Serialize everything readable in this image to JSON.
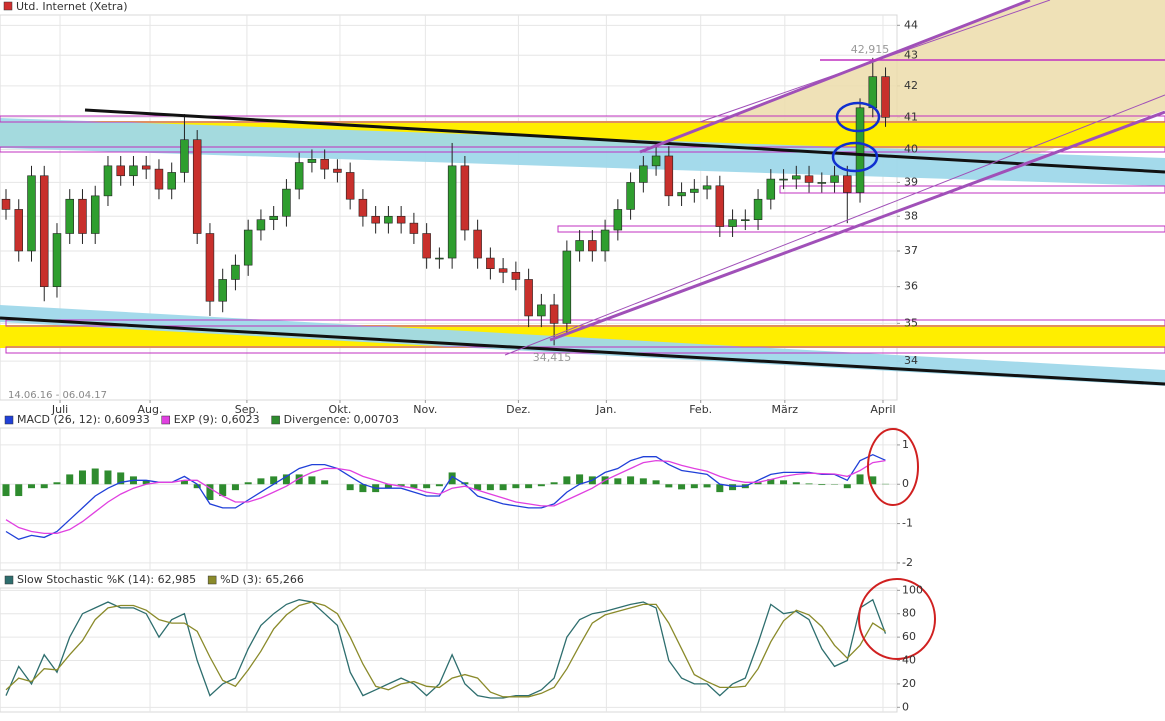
{
  "chart_data": [
    {
      "type": "candlestick",
      "title": "Utd. Internet (Xetra)",
      "title_color": "#d03030",
      "date_range": "14.06.16 - 06.04.17",
      "high_label": "42,915",
      "low_label": "34,415",
      "open": [
        38.5,
        38.2,
        37,
        39.2,
        36,
        37.5,
        38.5,
        37.5,
        38.6,
        39.5,
        39.2,
        39.5,
        39.4,
        38.8,
        39.3,
        40.3,
        37.5,
        35.6,
        36.2,
        36.6,
        37.6,
        37.9,
        38,
        38.8,
        39.6,
        39.7,
        39.4,
        39.3,
        38.5,
        38,
        37.8,
        38,
        37.8,
        37.5,
        36.8,
        36.8,
        39.5,
        37.6,
        36.8,
        36.5,
        36.4,
        36.2,
        35.2,
        35.5,
        35,
        37,
        37.3,
        37,
        37.6,
        38.2,
        39,
        39.5,
        39.8,
        38.6,
        38.7,
        38.8,
        38.9,
        37.7,
        37.9,
        37.9,
        38.5,
        39.1,
        39.1,
        39.2,
        39,
        39,
        39.2,
        38.7,
        41.3,
        42.3
      ],
      "high": [
        38.8,
        38.5,
        39.5,
        39.5,
        37.8,
        38.8,
        38.8,
        38.9,
        39.8,
        39.8,
        39.8,
        39.8,
        39.7,
        39.6,
        41.1,
        40.6,
        37.8,
        36.5,
        36.9,
        37.9,
        38.2,
        38.3,
        39.1,
        39.9,
        40,
        40,
        39.7,
        39.6,
        38.8,
        38.3,
        38.3,
        38.3,
        38.1,
        37.8,
        37.1,
        40.2,
        39.8,
        37.9,
        37.1,
        36.8,
        36.7,
        36.5,
        35.8,
        35.8,
        37.3,
        37.6,
        37.6,
        37.9,
        38.5,
        39.3,
        39.8,
        40.2,
        40.1,
        39,
        39.1,
        39.2,
        39.2,
        38.2,
        38.2,
        38.8,
        39.4,
        39.4,
        39.5,
        39.5,
        39.3,
        39.5,
        39.5,
        41.6,
        42.915,
        42.6
      ],
      "low": [
        37.9,
        36.7,
        36.7,
        35.6,
        35.7,
        37.2,
        37.2,
        37.2,
        38.3,
        38.9,
        38.9,
        39.1,
        38.5,
        38.5,
        39,
        37.2,
        35.2,
        35.3,
        35.9,
        36.3,
        37.3,
        37.6,
        37.7,
        38.5,
        39.3,
        39.1,
        39,
        38.2,
        37.7,
        37.5,
        37.5,
        37.5,
        37.2,
        36.5,
        36.5,
        36.5,
        37.3,
        36.5,
        36.2,
        36.1,
        35.9,
        34.9,
        34.9,
        34.415,
        34.7,
        36.7,
        36.7,
        36.7,
        37.3,
        37.9,
        38.7,
        39.2,
        38.3,
        38.3,
        38.4,
        38.5,
        37.4,
        37.4,
        37.6,
        37.6,
        38.2,
        38.8,
        38.8,
        38.7,
        38.7,
        38.7,
        37.8,
        38.4,
        41,
        40.7
      ],
      "close": [
        38.2,
        37,
        39.2,
        36,
        37.5,
        38.5,
        37.5,
        38.6,
        39.5,
        39.2,
        39.5,
        39.4,
        38.8,
        39.3,
        40.3,
        37.5,
        35.6,
        36.2,
        36.6,
        37.6,
        37.9,
        38,
        38.8,
        39.6,
        39.7,
        39.4,
        39.3,
        38.5,
        38,
        37.8,
        38,
        37.8,
        37.5,
        36.8,
        36.8,
        39.5,
        37.6,
        36.8,
        36.5,
        36.4,
        36.2,
        35.2,
        35.5,
        35,
        37,
        37.3,
        37,
        37.6,
        38.2,
        39,
        39.5,
        39.8,
        38.6,
        38.7,
        38.8,
        38.9,
        37.7,
        37.9,
        37.9,
        38.5,
        39.1,
        39.1,
        39.2,
        39,
        39,
        39.2,
        38.7,
        41.3,
        42.3,
        41
      ],
      "up_color": "#2f9e2f",
      "down_color": "#c8302c",
      "xlim": [
        -0.47,
        69.9
      ],
      "xticks": [
        {
          "value": 4.24,
          "label": "Juli"
        },
        {
          "value": 11.3,
          "label": "Aug."
        },
        {
          "value": 18.9,
          "label": "Sep."
        },
        {
          "value": 26.2,
          "label": "Okt."
        },
        {
          "value": 32.9,
          "label": "Nov."
        },
        {
          "value": 40.2,
          "label": "Dez."
        },
        {
          "value": 47.1,
          "label": "Jan."
        },
        {
          "value": 54.5,
          "label": "Feb."
        },
        {
          "value": 61.1,
          "label": "März"
        },
        {
          "value": 68.8,
          "label": "April"
        }
      ],
      "ylim": [
        33,
        44.35
      ],
      "yticks": [
        34,
        35,
        36,
        37,
        38,
        39,
        40,
        41,
        42,
        43,
        44
      ],
      "log_scale": true,
      "grid": true
    },
    {
      "type": "macd",
      "xlim": [
        -0.47,
        69.9
      ],
      "ylim": [
        -2.18,
        1.43
      ],
      "yticks": [
        -2,
        -1,
        0,
        1
      ],
      "series": [
        {
          "name": "MACD (26, 12): 0,60933",
          "color": "#2040d8",
          "style": "line",
          "values": [
            -1.2,
            -1.4,
            -1.3,
            -1.35,
            -1.2,
            -0.9,
            -0.6,
            -0.3,
            -0.1,
            0.05,
            0.1,
            0.1,
            0.05,
            0.05,
            0.2,
            0,
            -0.5,
            -0.6,
            -0.6,
            -0.4,
            -0.2,
            0,
            0.2,
            0.4,
            0.5,
            0.5,
            0.4,
            0.2,
            0,
            -0.1,
            -0.1,
            -0.1,
            -0.2,
            -0.3,
            -0.3,
            0.2,
            0,
            -0.3,
            -0.4,
            -0.5,
            -0.55,
            -0.6,
            -0.6,
            -0.5,
            -0.2,
            0,
            0.1,
            0.3,
            0.4,
            0.6,
            0.7,
            0.7,
            0.5,
            0.35,
            0.3,
            0.25,
            0,
            -0.05,
            -0.05,
            0.1,
            0.25,
            0.3,
            0.3,
            0.3,
            0.25,
            0.25,
            0.1,
            0.6,
            0.75,
            0.61
          ]
        },
        {
          "name": "EXP (9): 0,6023",
          "color": "#e040e0",
          "style": "line",
          "values": [
            -0.9,
            -1.1,
            -1.2,
            -1.25,
            -1.25,
            -1.15,
            -0.95,
            -0.7,
            -0.45,
            -0.25,
            -0.1,
            0,
            0.05,
            0.05,
            0.1,
            0.1,
            -0.1,
            -0.3,
            -0.45,
            -0.45,
            -0.35,
            -0.2,
            -0.05,
            0.15,
            0.3,
            0.4,
            0.4,
            0.35,
            0.2,
            0.1,
            0,
            -0.05,
            -0.1,
            -0.2,
            -0.25,
            -0.1,
            -0.05,
            -0.15,
            -0.25,
            -0.35,
            -0.45,
            -0.5,
            -0.55,
            -0.55,
            -0.4,
            -0.25,
            -0.1,
            0.1,
            0.25,
            0.4,
            0.55,
            0.6,
            0.58,
            0.48,
            0.4,
            0.33,
            0.2,
            0.1,
            0.05,
            0.05,
            0.12,
            0.2,
            0.25,
            0.28,
            0.27,
            0.26,
            0.2,
            0.35,
            0.55,
            0.6
          ]
        },
        {
          "name": "Divergence: 0,00703",
          "color": "#2e8b2e",
          "style": "bar",
          "values": [
            -0.3,
            -0.3,
            -0.1,
            -0.1,
            0.05,
            0.25,
            0.35,
            0.4,
            0.35,
            0.3,
            0.2,
            0.1,
            0,
            0,
            0.1,
            -0.1,
            -0.4,
            -0.3,
            -0.15,
            0.05,
            0.15,
            0.2,
            0.25,
            0.25,
            0.2,
            0.1,
            0,
            -0.15,
            -0.2,
            -0.2,
            -0.1,
            -0.05,
            -0.1,
            -0.1,
            -0.05,
            0.3,
            0.05,
            -0.15,
            -0.15,
            -0.15,
            -0.1,
            -0.1,
            -0.05,
            0.05,
            0.2,
            0.25,
            0.2,
            0.2,
            0.15,
            0.2,
            0.15,
            0.1,
            -0.08,
            -0.13,
            -0.1,
            -0.08,
            -0.2,
            -0.15,
            -0.1,
            0.05,
            0.13,
            0.1,
            0.05,
            0.02,
            -0.02,
            -0.01,
            -0.1,
            0.25,
            0.2,
            0.01
          ]
        }
      ]
    },
    {
      "type": "line",
      "xlim": [
        -0.47,
        69.9
      ],
      "ylim": [
        -4,
        102
      ],
      "yticks": [
        0,
        20,
        40,
        60,
        80,
        100
      ],
      "series": [
        {
          "name": "Slow Stochastic %K (14): 62,985",
          "color": "#2e6e6e",
          "style": "line",
          "values": [
            10,
            35,
            20,
            45,
            30,
            60,
            80,
            85,
            90,
            85,
            85,
            80,
            60,
            75,
            80,
            40,
            10,
            20,
            25,
            50,
            70,
            80,
            88,
            92,
            90,
            80,
            70,
            30,
            10,
            15,
            20,
            25,
            20,
            10,
            20,
            45,
            20,
            10,
            8,
            8,
            10,
            10,
            15,
            25,
            60,
            75,
            80,
            82,
            85,
            88,
            90,
            85,
            40,
            25,
            20,
            20,
            10,
            20,
            25,
            55,
            88,
            80,
            82,
            75,
            50,
            35,
            40,
            85,
            92,
            63
          ]
        },
        {
          "name": "%D (3): 65,266",
          "color": "#8a8a2a",
          "style": "line",
          "values": [
            15,
            25,
            22,
            33,
            32,
            45,
            57,
            75,
            85,
            87,
            87,
            83,
            75,
            72,
            72,
            65,
            43,
            23,
            18,
            32,
            48,
            67,
            79,
            87,
            90,
            87,
            80,
            60,
            37,
            18,
            15,
            20,
            22,
            18,
            17,
            25,
            28,
            25,
            13,
            9,
            9,
            9,
            12,
            17,
            33,
            53,
            72,
            79,
            82,
            85,
            88,
            88,
            72,
            50,
            28,
            22,
            17,
            17,
            18,
            33,
            56,
            74,
            83,
            79,
            69,
            53,
            42,
            53,
            72,
            65
          ]
        }
      ]
    }
  ]
}
